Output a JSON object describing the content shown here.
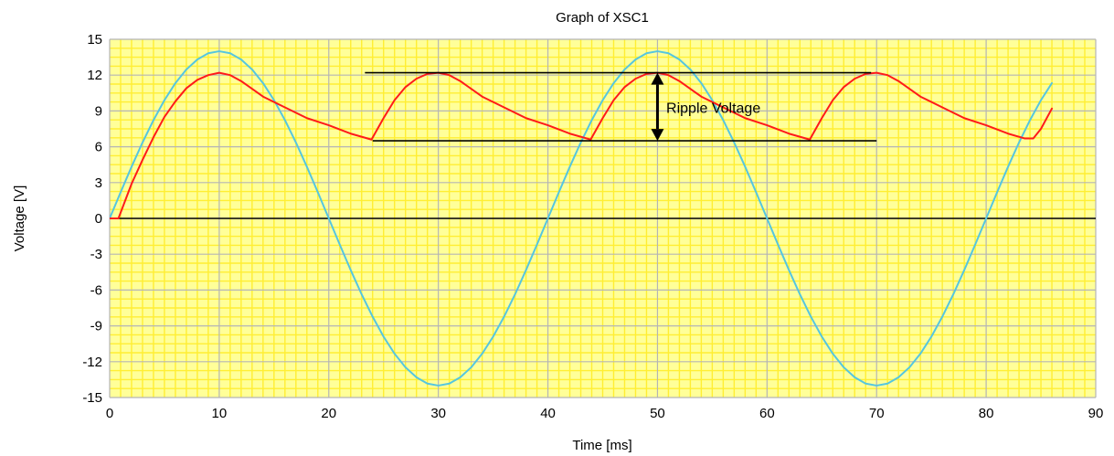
{
  "chart_data": {
    "type": "line",
    "title": "Graph of XSC1",
    "xlabel": "Time [ms]",
    "ylabel": "Voltage [V]",
    "xlim": [
      0,
      90
    ],
    "ylim": [
      -15,
      15
    ],
    "xticks": [
      0,
      10,
      20,
      30,
      40,
      50,
      60,
      70,
      80,
      90
    ],
    "yticks": [
      15,
      12,
      9,
      6,
      3,
      0,
      -3,
      -6,
      -9,
      -12,
      -15
    ],
    "grid": true,
    "colors": {
      "plot_background": "#ffff99",
      "minor_grid": "#ffee33",
      "major_grid": "#b5b5b5",
      "zero_line": "#000000",
      "sine": "#55c6e0",
      "rectified": "#ff1a1a",
      "annotation": "#000000"
    },
    "series": [
      {
        "key": "sine",
        "color": "#55c6e0",
        "x": [
          0,
          1,
          2,
          3,
          4,
          5,
          6,
          7,
          8,
          9,
          10,
          11,
          12,
          13,
          14,
          15,
          16,
          17,
          18,
          19,
          20,
          21,
          22,
          23,
          24,
          25,
          26,
          27,
          28,
          29,
          30,
          31,
          32,
          33,
          34,
          35,
          36,
          37,
          38,
          39,
          40,
          41,
          42,
          43,
          44,
          45,
          46,
          47,
          48,
          49,
          50,
          51,
          52,
          53,
          54,
          55,
          56,
          57,
          58,
          59,
          60,
          61,
          62,
          63,
          64,
          65,
          66,
          67,
          68,
          69,
          70,
          71,
          72,
          73,
          74,
          75,
          76,
          77,
          78,
          79,
          80,
          81,
          82,
          83,
          84,
          85,
          86
        ],
        "y": [
          0,
          2.19,
          4.33,
          6.36,
          8.23,
          9.9,
          11.33,
          12.47,
          13.31,
          13.83,
          14.0,
          13.83,
          13.31,
          12.47,
          11.33,
          9.9,
          8.23,
          6.36,
          4.33,
          2.19,
          0,
          -2.19,
          -4.33,
          -6.36,
          -8.23,
          -9.9,
          -11.33,
          -12.47,
          -13.31,
          -13.83,
          -14.0,
          -13.83,
          -13.31,
          -12.47,
          -11.33,
          -9.9,
          -8.23,
          -6.36,
          -4.33,
          -2.19,
          0,
          2.19,
          4.33,
          6.36,
          8.23,
          9.9,
          11.33,
          12.47,
          13.31,
          13.83,
          14.0,
          13.83,
          13.31,
          12.47,
          11.33,
          9.9,
          8.23,
          6.36,
          4.33,
          2.19,
          0,
          -2.19,
          -4.33,
          -6.36,
          -8.23,
          -9.9,
          -11.33,
          -12.47,
          -13.31,
          -13.83,
          -14.0,
          -13.83,
          -13.31,
          -12.47,
          -11.33,
          -9.9,
          -8.23,
          -6.36,
          -4.33,
          -2.19,
          0,
          2.19,
          4.33,
          6.36,
          8.23,
          9.9,
          11.33
        ]
      },
      {
        "key": "rectified",
        "color": "#ff1a1a",
        "x": [
          0,
          0.8,
          2,
          3,
          4,
          5,
          6,
          7,
          8,
          9,
          10,
          11,
          12,
          14,
          16,
          18,
          20,
          22,
          23.9,
          25,
          26,
          27,
          28,
          29,
          30,
          31,
          32,
          34,
          36,
          38,
          40,
          42,
          43.9,
          45,
          46,
          47,
          48,
          49,
          50,
          51,
          52,
          54,
          56,
          58,
          60,
          62,
          63.9,
          65,
          66,
          67,
          68,
          69,
          70,
          71,
          72,
          74,
          76,
          78,
          80,
          82,
          83.5,
          84.3,
          85,
          86
        ],
        "y": [
          0,
          0,
          2.9,
          4.9,
          6.8,
          8.5,
          9.8,
          10.9,
          11.6,
          12.0,
          12.2,
          12.0,
          11.5,
          10.2,
          9.3,
          8.4,
          7.8,
          7.1,
          6.6,
          8.4,
          9.9,
          11.0,
          11.7,
          12.1,
          12.2,
          12.0,
          11.5,
          10.2,
          9.3,
          8.4,
          7.8,
          7.1,
          6.6,
          8.4,
          9.9,
          11.0,
          11.7,
          12.1,
          12.2,
          12.0,
          11.5,
          10.2,
          9.3,
          8.4,
          7.8,
          7.1,
          6.6,
          8.4,
          9.9,
          11.0,
          11.7,
          12.1,
          12.2,
          12.0,
          11.5,
          10.2,
          9.3,
          8.4,
          7.8,
          7.1,
          6.7,
          6.7,
          7.5,
          9.2
        ]
      }
    ],
    "annotations": [
      {
        "type": "hline",
        "y": 12.2,
        "x_start": 23.3,
        "x_end": 69.5
      },
      {
        "type": "hline",
        "y": 6.5,
        "x_start": 24.0,
        "x_end": 70.0
      },
      {
        "type": "double-arrow",
        "x": 50,
        "y_start": 6.5,
        "y_end": 12.2
      },
      {
        "type": "text",
        "text": "Ripple Voltage",
        "x": 50.8,
        "y": 9.3
      }
    ]
  }
}
